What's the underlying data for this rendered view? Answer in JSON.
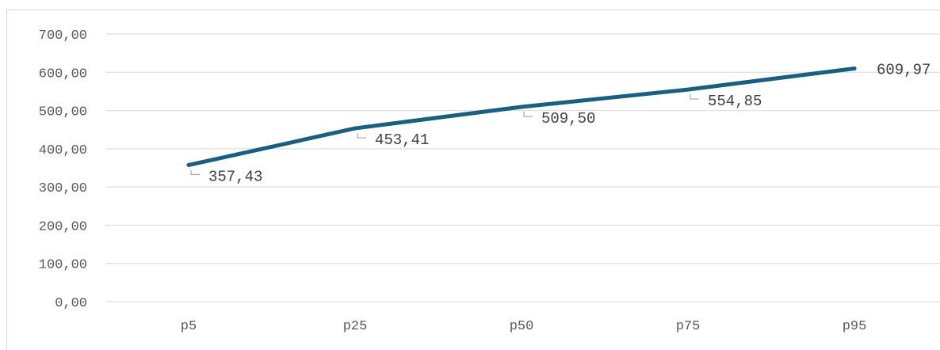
{
  "chart_data": {
    "type": "line",
    "title": "",
    "xlabel": "",
    "ylabel": "",
    "categories": [
      "p5",
      "p25",
      "p50",
      "p75",
      "p95"
    ],
    "series": [
      {
        "values": [
          357.43,
          453.41,
          509.5,
          554.85,
          609.97
        ],
        "color": "#1a5f7f",
        "data_labels": [
          "357,43",
          "453,41",
          "509,50",
          "554,85",
          "609,97"
        ]
      }
    ],
    "ylim": [
      0,
      700
    ],
    "yticks": [
      0,
      100,
      200,
      300,
      400,
      500,
      600,
      700
    ],
    "ytick_labels": [
      "0,00",
      "100,00",
      "200,00",
      "300,00",
      "400,00",
      "500,00",
      "600,00",
      "700,00"
    ],
    "grid": true,
    "legend": "none"
  }
}
